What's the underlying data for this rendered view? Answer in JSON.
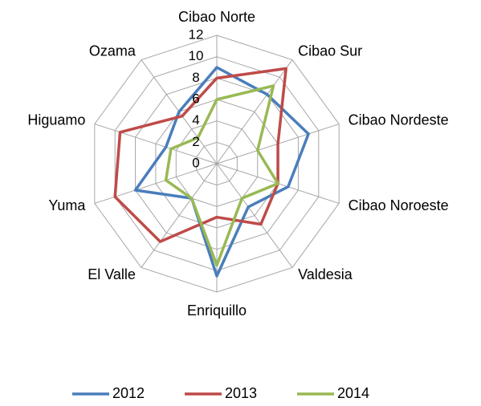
{
  "chart_data": {
    "type": "radar",
    "categories": [
      "Cibao Norte",
      "Cibao Sur",
      "Cibao Nordeste",
      "Cibao Noroeste",
      "Valdesia",
      "Enriquillo",
      "El Valle",
      "Yuma",
      "Higuamo",
      "Ozama"
    ],
    "series": [
      {
        "name": "2012",
        "color": "#4a7ebb",
        "values": [
          9,
          8,
          9,
          7,
          5,
          10.5,
          4,
          8,
          5,
          6
        ]
      },
      {
        "name": "2013",
        "color": "#be4b48",
        "values": [
          8,
          11,
          6,
          6,
          7,
          5,
          9,
          10,
          9.5,
          5.5
        ]
      },
      {
        "name": "2014",
        "color": "#98b954",
        "values": [
          6,
          9,
          4,
          6,
          4,
          9.5,
          4,
          5,
          4.5,
          3
        ]
      }
    ],
    "ylim": [
      0,
      12
    ],
    "yticks": [
      0,
      2,
      4,
      6,
      8,
      10,
      12
    ],
    "grid": true,
    "legend": "bottom"
  }
}
